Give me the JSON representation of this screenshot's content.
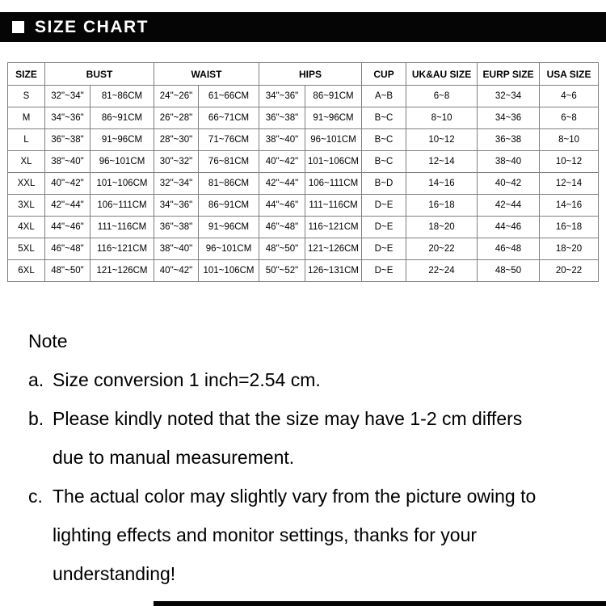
{
  "header": {
    "title": "SIZE CHART"
  },
  "table": {
    "columns": {
      "size": "SIZE",
      "bust": "BUST",
      "waist": "WAIST",
      "hips": "HIPS",
      "cup": "CUP",
      "uk_au": "UK&AU SIZE",
      "eurp": "EURP SIZE",
      "usa": "USA SIZE"
    },
    "rows": [
      [
        "S",
        "32\"~34\"",
        "81~86CM",
        "24\"~26\"",
        "61~66CM",
        "34\"~36\"",
        "86~91CM",
        "A~B",
        "6~8",
        "32~34",
        "4~6"
      ],
      [
        "M",
        "34\"~36\"",
        "86~91CM",
        "26\"~28\"",
        "66~71CM",
        "36\"~38\"",
        "91~96CM",
        "B~C",
        "8~10",
        "34~36",
        "6~8"
      ],
      [
        "L",
        "36\"~38\"",
        "91~96CM",
        "28\"~30\"",
        "71~76CM",
        "38\"~40\"",
        "96~101CM",
        "B~C",
        "10~12",
        "36~38",
        "8~10"
      ],
      [
        "XL",
        "38\"~40\"",
        "96~101CM",
        "30\"~32\"",
        "76~81CM",
        "40\"~42\"",
        "101~106CM",
        "B~C",
        "12~14",
        "38~40",
        "10~12"
      ],
      [
        "XXL",
        "40\"~42\"",
        "101~106CM",
        "32\"~34\"",
        "81~86CM",
        "42\"~44\"",
        "106~111CM",
        "B~D",
        "14~16",
        "40~42",
        "12~14"
      ],
      [
        "3XL",
        "42\"~44\"",
        "106~111CM",
        "34\"~36\"",
        "86~91CM",
        "44\"~46\"",
        "111~116CM",
        "D~E",
        "16~18",
        "42~44",
        "14~16"
      ],
      [
        "4XL",
        "44\"~46\"",
        "111~116CM",
        "36\"~38\"",
        "91~96CM",
        "46\"~48\"",
        "116~121CM",
        "D~E",
        "18~20",
        "44~46",
        "16~18"
      ],
      [
        "5XL",
        "46\"~48\"",
        "116~121CM",
        "38\"~40\"",
        "96~101CM",
        "48\"~50\"",
        "121~126CM",
        "D~E",
        "20~22",
        "46~48",
        "18~20"
      ],
      [
        "6XL",
        "48\"~50\"",
        "121~126CM",
        "40\"~42\"",
        "101~106CM",
        "50\"~52\"",
        "126~131CM",
        "D~E",
        "22~24",
        "48~50",
        "20~22"
      ]
    ]
  },
  "notes": {
    "title": "Note",
    "items": [
      {
        "label": "a.",
        "lines": [
          "Size conversion 1 inch=2.54 cm."
        ]
      },
      {
        "label": "b.",
        "lines": [
          "Please kindly noted that the size may have 1-2 cm differs",
          "due to manual measurement."
        ]
      },
      {
        "label": "c.",
        "lines": [
          "The actual color may slightly vary from the picture owing to",
          "lighting effects and monitor settings, thanks for your",
          "understanding!"
        ]
      }
    ]
  },
  "colors": {
    "bar_background": "#050505",
    "bar_text": "#ffffff",
    "table_border": "#7f7f7f",
    "text": "#000000",
    "page_background": "#ffffff"
  }
}
